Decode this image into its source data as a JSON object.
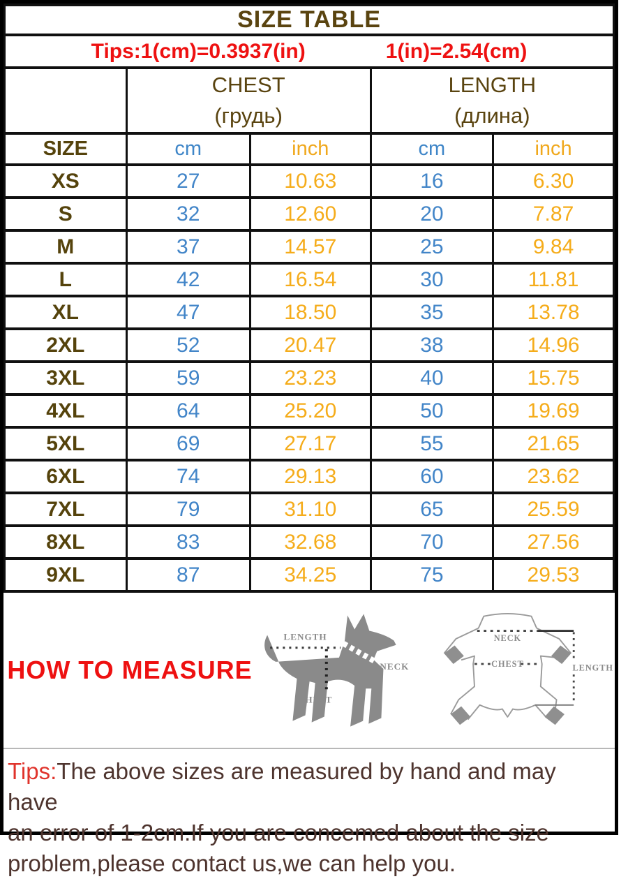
{
  "title": "SIZE TABLE",
  "conversion": {
    "left": "Tips:1(cm)=0.3937(in)",
    "right": "1(in)=2.54(cm)"
  },
  "table": {
    "size_header": "SIZE",
    "groups": [
      {
        "label": "CHEST",
        "sub": "(грудь)"
      },
      {
        "label": "LENGTH",
        "sub": "(длина)"
      }
    ],
    "unit_headers": [
      "cm",
      "inch",
      "cm",
      "inch"
    ],
    "rows": [
      {
        "size": "XS",
        "chest_cm": "27",
        "chest_in": "10.63",
        "length_cm": "16",
        "length_in": "6.30"
      },
      {
        "size": "S",
        "chest_cm": "32",
        "chest_in": "12.60",
        "length_cm": "20",
        "length_in": "7.87"
      },
      {
        "size": "M",
        "chest_cm": "37",
        "chest_in": "14.57",
        "length_cm": "25",
        "length_in": "9.84"
      },
      {
        "size": "L",
        "chest_cm": "42",
        "chest_in": "16.54",
        "length_cm": "30",
        "length_in": "11.81"
      },
      {
        "size": "XL",
        "chest_cm": "47",
        "chest_in": "18.50",
        "length_cm": "35",
        "length_in": "13.78"
      },
      {
        "size": "2XL",
        "chest_cm": "52",
        "chest_in": "20.47",
        "length_cm": "38",
        "length_in": "14.96"
      },
      {
        "size": "3XL",
        "chest_cm": "59",
        "chest_in": "23.23",
        "length_cm": "40",
        "length_in": "15.75"
      },
      {
        "size": "4XL",
        "chest_cm": "64",
        "chest_in": "25.20",
        "length_cm": "50",
        "length_in": "19.69"
      },
      {
        "size": "5XL",
        "chest_cm": "69",
        "chest_in": "27.17",
        "length_cm": "55",
        "length_in": "21.65"
      },
      {
        "size": "6XL",
        "chest_cm": "74",
        "chest_in": "29.13",
        "length_cm": "60",
        "length_in": "23.62"
      },
      {
        "size": "7XL",
        "chest_cm": "79",
        "chest_in": "31.10",
        "length_cm": "65",
        "length_in": "25.59"
      },
      {
        "size": "8XL",
        "chest_cm": "83",
        "chest_in": "32.68",
        "length_cm": "70",
        "length_in": "27.56"
      },
      {
        "size": "9XL",
        "chest_cm": "87",
        "chest_in": "34.25",
        "length_cm": "75",
        "length_in": "29.53"
      }
    ]
  },
  "measure": {
    "heading": "HOW TO MEASURE",
    "dog_labels": {
      "length": "LENGTH",
      "neck": "NECK",
      "chest": "CHEST"
    },
    "garment_labels": {
      "neck": "NECK",
      "chest": "CHEST",
      "length": "LENGTH"
    }
  },
  "footer": {
    "tips_label": "Tips:",
    "line1": "The above sizes are measured by hand and may have",
    "line2": "an error of 1-2cm.If you are concemed about the size",
    "line3": "problem,please contact us,we can help you."
  },
  "colors": {
    "cm_blue": "#4285c8",
    "inch_orange": "#f5ac1a",
    "accent_red": "#ee1111",
    "header_brown": "#5a4410",
    "footer_text": "#4e342e",
    "diagram_gray": "#8a8a8a"
  }
}
